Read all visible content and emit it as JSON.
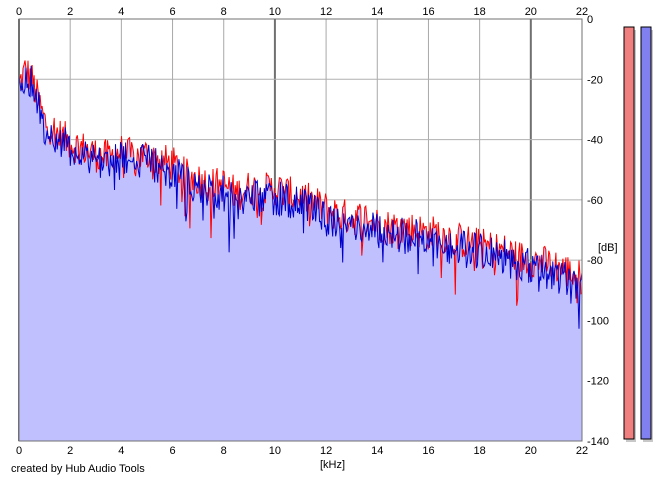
{
  "chart_data": {
    "type": "area",
    "x_label": "[kHz]",
    "y_label": "[dB]",
    "x_range": [
      0,
      22
    ],
    "y_range": [
      -140,
      0
    ],
    "x_ticks": [
      0,
      2,
      4,
      6,
      8,
      10,
      12,
      14,
      16,
      18,
      20,
      22
    ],
    "y_ticks": [
      0,
      -20,
      -40,
      -60,
      -80,
      -100,
      -120,
      -140
    ],
    "x_tick_labels": [
      "0",
      "2",
      "4",
      "6",
      "8",
      "10",
      "12",
      "14",
      "16",
      "18",
      "20",
      "22"
    ],
    "y_tick_labels": [
      "0",
      "-20",
      "-40",
      "-60",
      "-80",
      "-100",
      "-120",
      "-140"
    ],
    "grid": true,
    "fill_color": "#c0c0ff",
    "series": [
      {
        "color": "#ff0000",
        "x": [
          0,
          0.25,
          0.5,
          1,
          1.5,
          2,
          2.5,
          3,
          3.5,
          4,
          4.5,
          5,
          5.5,
          6,
          6.5,
          7,
          7.5,
          8,
          8.5,
          9,
          9.5,
          10,
          10.5,
          11,
          11.5,
          12,
          12.5,
          13,
          13.5,
          14,
          14.5,
          15,
          15.5,
          16,
          16.5,
          17,
          17.5,
          18,
          18.5,
          19,
          19.5,
          20,
          20.5,
          21,
          21.5,
          22
        ],
        "y": [
          -22,
          -17,
          -20,
          -34,
          -38,
          -41,
          -43,
          -45,
          -46,
          -44,
          -46,
          -45,
          -47,
          -48,
          -52,
          -53,
          -55,
          -55,
          -58,
          -56,
          -57,
          -56,
          -58,
          -59,
          -61,
          -63,
          -65,
          -66,
          -66,
          -68,
          -69,
          -69,
          -70,
          -71,
          -71,
          -73,
          -74,
          -75,
          -76,
          -77,
          -79,
          -80,
          -81,
          -82,
          -84,
          -86
        ]
      },
      {
        "color": "#0000cc",
        "x": [
          0,
          0.25,
          0.5,
          1,
          1.5,
          2,
          2.5,
          3,
          3.5,
          4,
          4.5,
          5,
          5.5,
          6,
          6.5,
          7,
          7.5,
          8,
          8.5,
          9,
          9.5,
          10,
          10.5,
          11,
          11.5,
          12,
          12.5,
          13,
          13.5,
          14,
          14.5,
          15,
          15.5,
          16,
          16.5,
          17,
          17.5,
          18,
          18.5,
          19,
          19.5,
          20,
          20.5,
          21,
          21.5,
          22
        ],
        "y": [
          -24,
          -18,
          -21,
          -36,
          -40,
          -43,
          -45,
          -46,
          -48,
          -46,
          -48,
          -47,
          -49,
          -51,
          -54,
          -55,
          -57,
          -58,
          -60,
          -59,
          -60,
          -59,
          -60,
          -62,
          -64,
          -66,
          -68,
          -69,
          -68,
          -70,
          -71,
          -72,
          -72,
          -73,
          -74,
          -76,
          -76,
          -77,
          -78,
          -79,
          -81,
          -82,
          -84,
          -85,
          -86,
          -88
        ]
      }
    ],
    "legend": "none",
    "level_meters": [
      {
        "color": "#f08080",
        "value_db": 0
      },
      {
        "color": "#8080f0",
        "value_db": 0
      }
    ]
  },
  "credit": "created by Hub Audio Tools"
}
